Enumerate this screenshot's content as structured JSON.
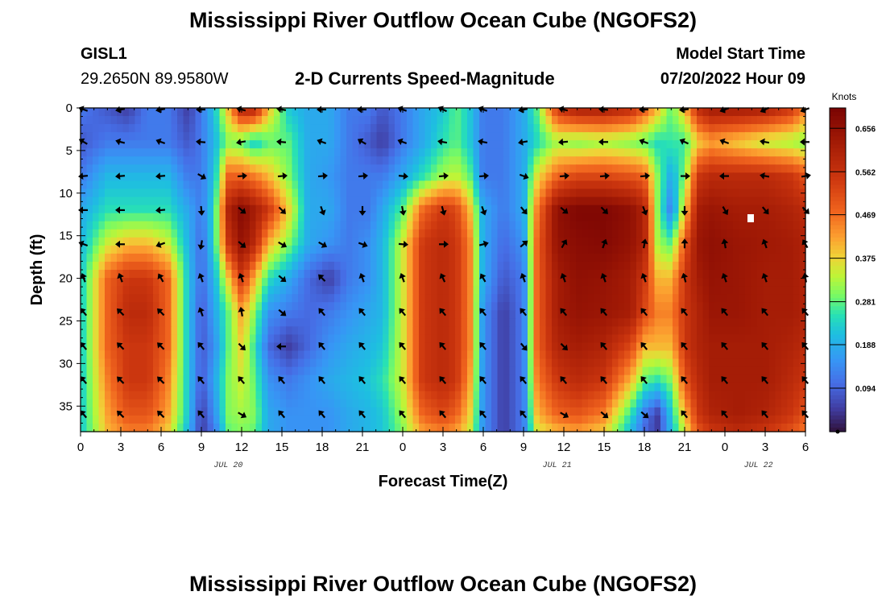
{
  "header": {
    "title": "Mississippi River Outflow Ocean Cube (NGOFS2)",
    "station_id": "GISL1",
    "station_coords": "29.2650N  89.9580W",
    "subtitle": "2-D Currents Speed-Magnitude",
    "model_start_label": "Model Start Time",
    "model_start_value": "07/20/2022 Hour 09"
  },
  "footer": {
    "title": "Mississippi River Outflow Ocean Cube (NGOFS2)"
  },
  "chart_data": {
    "type": "heatmap",
    "title": "2-D Currents Speed-Magnitude",
    "xlabel": "Forecast Time(Z)",
    "ylabel": "Depth (ft)",
    "x_ticks": [
      "0",
      "3",
      "6",
      "9",
      "12",
      "15",
      "18",
      "21",
      "0",
      "3",
      "6",
      "9",
      "12",
      "15",
      "18",
      "21",
      "0",
      "3",
      "6"
    ],
    "x_hours": [
      0,
      3,
      6,
      9,
      12,
      15,
      18,
      21,
      24,
      27,
      30,
      33,
      36,
      39,
      42,
      45,
      48,
      51,
      54
    ],
    "date_labels": [
      {
        "text": "JUL 20",
        "hour": 11
      },
      {
        "text": "JUL 21",
        "hour": 35.5
      },
      {
        "text": "JUL 22",
        "hour": 50.5
      }
    ],
    "xlim": [
      0,
      54
    ],
    "ylim": [
      0,
      38
    ],
    "y_ticks": [
      0,
      5,
      10,
      15,
      20,
      25,
      30,
      35
    ],
    "colorbar": {
      "label": "Knots",
      "ticks": [
        0.094,
        0.188,
        0.281,
        0.375,
        0.469,
        0.562,
        0.656
      ],
      "tick_labels": [
        "0.094",
        "0.188",
        "0.281",
        "0.375",
        "0.469",
        "0.562",
        "0.656"
      ],
      "range": [
        0,
        0.7
      ]
    },
    "speed_grid": {
      "hours": [
        0,
        2,
        3.5,
        5,
        6.5,
        8,
        9,
        10,
        11,
        12,
        13,
        14,
        15.5,
        17,
        18.5,
        20,
        21.5,
        22.5,
        24,
        25.5,
        27,
        28,
        29,
        30,
        31.5,
        33,
        34,
        35.5,
        37,
        39,
        41,
        42,
        43,
        44,
        45,
        46,
        47,
        49,
        51,
        53,
        54
      ],
      "depths": [
        0,
        4,
        8,
        12,
        16,
        20,
        24,
        28,
        32,
        36,
        38
      ],
      "values": [
        [
          0.12,
          0.08,
          0.05,
          0.12,
          0.12,
          0.05,
          0.12,
          0.22,
          0.4,
          0.6,
          0.6,
          0.4,
          0.22,
          0.18,
          0.18,
          0.12,
          0.12,
          0.08,
          0.12,
          0.18,
          0.22,
          0.28,
          0.22,
          0.12,
          0.12,
          0.18,
          0.28,
          0.55,
          0.62,
          0.62,
          0.58,
          0.5,
          0.4,
          0.28,
          0.4,
          0.58,
          0.63,
          0.63,
          0.62,
          0.55,
          0.45
        ],
        [
          0.08,
          0.12,
          0.12,
          0.12,
          0.12,
          0.08,
          0.12,
          0.2,
          0.3,
          0.28,
          0.22,
          0.28,
          0.28,
          0.18,
          0.18,
          0.12,
          0.08,
          0.05,
          0.12,
          0.18,
          0.25,
          0.28,
          0.22,
          0.12,
          0.12,
          0.18,
          0.24,
          0.32,
          0.3,
          0.32,
          0.3,
          0.28,
          0.24,
          0.26,
          0.26,
          0.38,
          0.42,
          0.38,
          0.34,
          0.32,
          0.3
        ],
        [
          0.12,
          0.2,
          0.2,
          0.2,
          0.2,
          0.12,
          0.12,
          0.22,
          0.48,
          0.48,
          0.45,
          0.4,
          0.3,
          0.18,
          0.16,
          0.12,
          0.12,
          0.12,
          0.18,
          0.25,
          0.32,
          0.34,
          0.28,
          0.12,
          0.12,
          0.18,
          0.36,
          0.48,
          0.52,
          0.52,
          0.5,
          0.48,
          0.3,
          0.18,
          0.3,
          0.55,
          0.58,
          0.58,
          0.58,
          0.55,
          0.5
        ],
        [
          0.18,
          0.25,
          0.25,
          0.25,
          0.25,
          0.18,
          0.12,
          0.25,
          0.6,
          0.68,
          0.62,
          0.55,
          0.38,
          0.18,
          0.18,
          0.12,
          0.12,
          0.18,
          0.28,
          0.48,
          0.55,
          0.52,
          0.4,
          0.18,
          0.12,
          0.18,
          0.45,
          0.66,
          0.69,
          0.69,
          0.66,
          0.6,
          0.3,
          0.12,
          0.38,
          0.62,
          0.64,
          0.62,
          0.62,
          0.6,
          0.58
        ],
        [
          0.2,
          0.35,
          0.4,
          0.4,
          0.35,
          0.2,
          0.1,
          0.25,
          0.55,
          0.65,
          0.58,
          0.4,
          0.3,
          0.18,
          0.15,
          0.12,
          0.15,
          0.2,
          0.35,
          0.55,
          0.58,
          0.55,
          0.45,
          0.18,
          0.1,
          0.15,
          0.48,
          0.65,
          0.67,
          0.68,
          0.65,
          0.6,
          0.32,
          0.28,
          0.5,
          0.64,
          0.66,
          0.64,
          0.63,
          0.62,
          0.6
        ],
        [
          0.22,
          0.48,
          0.55,
          0.55,
          0.48,
          0.22,
          0.1,
          0.2,
          0.38,
          0.55,
          0.4,
          0.25,
          0.18,
          0.1,
          0.05,
          0.12,
          0.15,
          0.2,
          0.35,
          0.55,
          0.58,
          0.55,
          0.45,
          0.18,
          0.08,
          0.12,
          0.48,
          0.62,
          0.66,
          0.65,
          0.62,
          0.55,
          0.4,
          0.4,
          0.55,
          0.62,
          0.65,
          0.64,
          0.62,
          0.62,
          0.6
        ],
        [
          0.22,
          0.48,
          0.58,
          0.58,
          0.48,
          0.22,
          0.08,
          0.18,
          0.28,
          0.42,
          0.3,
          0.15,
          0.12,
          0.1,
          0.12,
          0.15,
          0.18,
          0.2,
          0.35,
          0.55,
          0.58,
          0.55,
          0.45,
          0.15,
          0.05,
          0.12,
          0.48,
          0.62,
          0.65,
          0.64,
          0.62,
          0.52,
          0.45,
          0.45,
          0.55,
          0.6,
          0.64,
          0.64,
          0.62,
          0.62,
          0.6
        ],
        [
          0.22,
          0.48,
          0.55,
          0.55,
          0.48,
          0.22,
          0.08,
          0.15,
          0.28,
          0.38,
          0.25,
          0.1,
          0.05,
          0.1,
          0.15,
          0.18,
          0.2,
          0.22,
          0.35,
          0.55,
          0.58,
          0.55,
          0.45,
          0.15,
          0.05,
          0.12,
          0.48,
          0.6,
          0.62,
          0.6,
          0.52,
          0.4,
          0.4,
          0.4,
          0.55,
          0.6,
          0.62,
          0.62,
          0.62,
          0.6,
          0.58
        ],
        [
          0.22,
          0.45,
          0.55,
          0.55,
          0.45,
          0.22,
          0.08,
          0.18,
          0.3,
          0.35,
          0.28,
          0.15,
          0.12,
          0.15,
          0.18,
          0.2,
          0.22,
          0.25,
          0.35,
          0.55,
          0.58,
          0.55,
          0.42,
          0.15,
          0.05,
          0.12,
          0.45,
          0.55,
          0.58,
          0.55,
          0.4,
          0.28,
          0.25,
          0.3,
          0.5,
          0.58,
          0.62,
          0.62,
          0.62,
          0.58,
          0.55
        ],
        [
          0.22,
          0.42,
          0.5,
          0.5,
          0.42,
          0.22,
          0.05,
          0.15,
          0.3,
          0.32,
          0.3,
          0.18,
          0.15,
          0.15,
          0.15,
          0.18,
          0.2,
          0.22,
          0.32,
          0.48,
          0.52,
          0.48,
          0.38,
          0.15,
          0.05,
          0.12,
          0.4,
          0.48,
          0.5,
          0.45,
          0.25,
          0.12,
          0.05,
          0.22,
          0.4,
          0.55,
          0.6,
          0.62,
          0.6,
          0.55,
          0.5
        ],
        [
          0.22,
          0.4,
          0.45,
          0.45,
          0.38,
          0.2,
          0.05,
          0.12,
          0.28,
          0.3,
          0.28,
          0.18,
          0.15,
          0.15,
          0.15,
          0.18,
          0.2,
          0.22,
          0.3,
          0.42,
          0.45,
          0.42,
          0.35,
          0.15,
          0.05,
          0.12,
          0.35,
          0.4,
          0.42,
          0.38,
          0.2,
          0.1,
          0.05,
          0.2,
          0.35,
          0.5,
          0.55,
          0.58,
          0.55,
          0.5,
          0.45
        ]
      ]
    },
    "vectors": {
      "hours": [
        0,
        3,
        6,
        9,
        12,
        15,
        18,
        21,
        24,
        27,
        30,
        33,
        36,
        39,
        42,
        45,
        48,
        51,
        54
      ],
      "depths": [
        0,
        4,
        8,
        12,
        16,
        20,
        24,
        28,
        32,
        36
      ],
      "angles_deg": [
        [
          200,
          170,
          170,
          180,
          195,
          190,
          180,
          180,
          200,
          205,
          200,
          170,
          195,
          185,
          180,
          175,
          160,
          155,
          160
        ],
        [
          210,
          195,
          200,
          185,
          170,
          185,
          200,
          210,
          200,
          190,
          190,
          170,
          175,
          180,
          200,
          205,
          200,
          190,
          180
        ],
        [
          175,
          175,
          175,
          30,
          355,
          355,
          355,
          355,
          5,
          355,
          355,
          20,
          355,
          355,
          355,
          0,
          180,
          190,
          350
        ],
        [
          180,
          180,
          175,
          85,
          40,
          45,
          70,
          90,
          80,
          75,
          70,
          50,
          40,
          45,
          70,
          90,
          60,
          50,
          45
        ],
        [
          200,
          180,
          160,
          100,
          40,
          30,
          30,
          20,
          5,
          0,
          345,
          320,
          300,
          290,
          280,
          270,
          260,
          250,
          240
        ],
        [
          250,
          250,
          240,
          250,
          250,
          40,
          225,
          250,
          250,
          245,
          240,
          250,
          250,
          250,
          250,
          255,
          250,
          250,
          260
        ],
        [
          230,
          225,
          225,
          250,
          260,
          40,
          230,
          230,
          230,
          230,
          230,
          230,
          230,
          230,
          230,
          230,
          230,
          230,
          230
        ],
        [
          230,
          225,
          225,
          230,
          45,
          180,
          230,
          230,
          230,
          230,
          230,
          50,
          45,
          230,
          230,
          230,
          230,
          230,
          230
        ],
        [
          230,
          225,
          225,
          230,
          230,
          230,
          230,
          230,
          230,
          230,
          230,
          230,
          230,
          230,
          230,
          230,
          230,
          230,
          230
        ],
        [
          230,
          225,
          225,
          230,
          30,
          230,
          230,
          230,
          230,
          230,
          230,
          230,
          30,
          40,
          40,
          230,
          230,
          230,
          230
        ]
      ]
    }
  }
}
